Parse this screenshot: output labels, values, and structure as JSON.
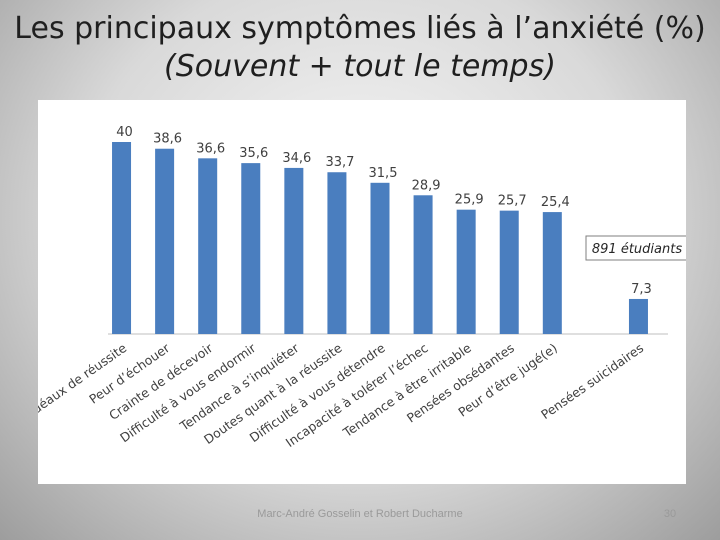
{
  "slide": {
    "title_line1": "Les principaux symptômes liés à l’anxiété (%)",
    "title_line2": "(Souvent + tout le temps)",
    "footer": "Marc-André Gosselin et Robert Ducharme",
    "page_number": "30"
  },
  "chart_data": {
    "type": "bar",
    "categories": [
      "Idéaux de réussite",
      "Peur d’échouer",
      "Crainte de décevoir",
      "Difficulté à vous endormir",
      "Tendance à s’inquiéter",
      "Doutes quant à la réussite",
      "Difficulté à vous détendre",
      "Incapacité à tolérer l’échec",
      "Tendance à être irritable",
      "Pensées obsédantes",
      "Peur d’être jugé(e)",
      "",
      "Pensées suicidaires"
    ],
    "values": [
      40,
      38.6,
      36.6,
      35.6,
      34.6,
      33.7,
      31.5,
      28.9,
      25.9,
      25.7,
      25.4,
      null,
      7.3
    ],
    "value_labels": [
      "40",
      "38,6",
      "36,6",
      "35,6",
      "34,6",
      "33,7",
      "31,5",
      "28,9",
      "25,9",
      "25,7",
      "25,4",
      "",
      "7,3"
    ],
    "ylim": [
      0,
      40
    ],
    "bar_color": "#4a7ebf",
    "annotation": "891 étudiants",
    "grid": false,
    "legend": "none"
  }
}
